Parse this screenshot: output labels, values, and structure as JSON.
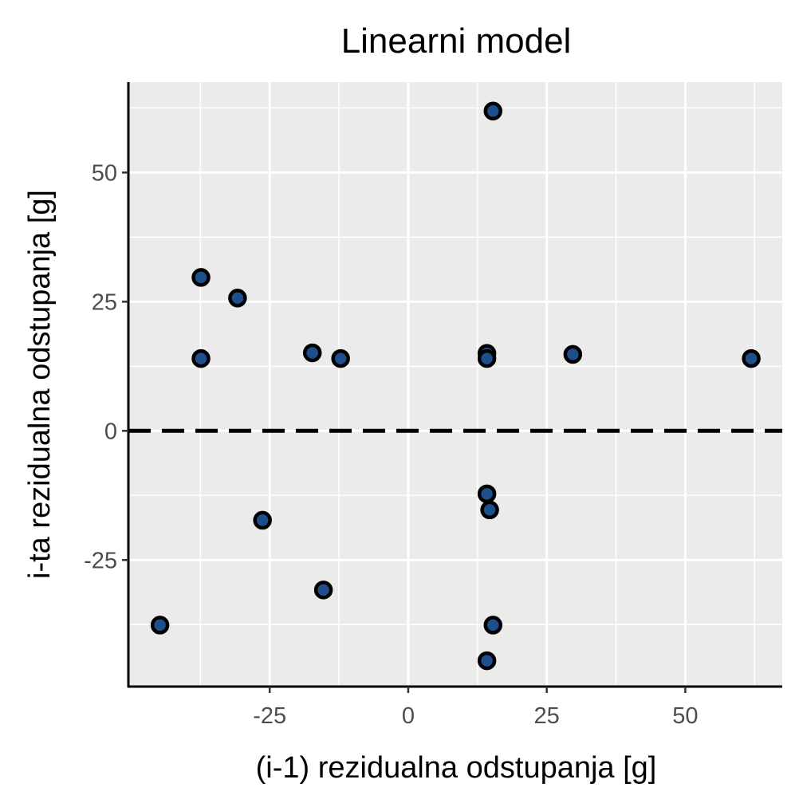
{
  "chart_data": {
    "type": "scatter",
    "title": "Linearni model",
    "xlabel": "(i-1) rezidualna odstupanja [g]",
    "ylabel": "i-ta rezidualna odstupanja [g]",
    "xlim": [
      -50.5,
      67.5
    ],
    "ylim": [
      -49.5,
      67.5
    ],
    "x_ticks": [
      -25,
      0,
      25,
      50
    ],
    "x_tick_labels": [
      "-25",
      "0",
      "25",
      "50"
    ],
    "y_ticks": [
      -25,
      0,
      25,
      50
    ],
    "y_tick_labels": [
      "-25",
      "0",
      "25",
      "50"
    ],
    "grid": true,
    "reference_line": {
      "y": 0,
      "style": "dashed"
    },
    "points_color": "#1f4e8c",
    "points_edge_color": "#000000",
    "panel_background": "#ebebeb",
    "points": [
      {
        "x": 15.3,
        "y": 61.9
      },
      {
        "x": -37.4,
        "y": 29.7
      },
      {
        "x": -30.8,
        "y": 25.7
      },
      {
        "x": -37.4,
        "y": 14.0
      },
      {
        "x": -17.3,
        "y": 15.1
      },
      {
        "x": -12.2,
        "y": 14.0
      },
      {
        "x": 14.2,
        "y": 15.0
      },
      {
        "x": 14.2,
        "y": 14.0
      },
      {
        "x": 29.7,
        "y": 14.8
      },
      {
        "x": 61.9,
        "y": 14.0
      },
      {
        "x": 14.2,
        "y": -12.2
      },
      {
        "x": 14.7,
        "y": -15.3
      },
      {
        "x": -26.3,
        "y": -17.3
      },
      {
        "x": -15.3,
        "y": -30.8
      },
      {
        "x": -44.8,
        "y": -37.6
      },
      {
        "x": 15.3,
        "y": -37.6
      },
      {
        "x": 14.2,
        "y": -44.5
      }
    ]
  }
}
